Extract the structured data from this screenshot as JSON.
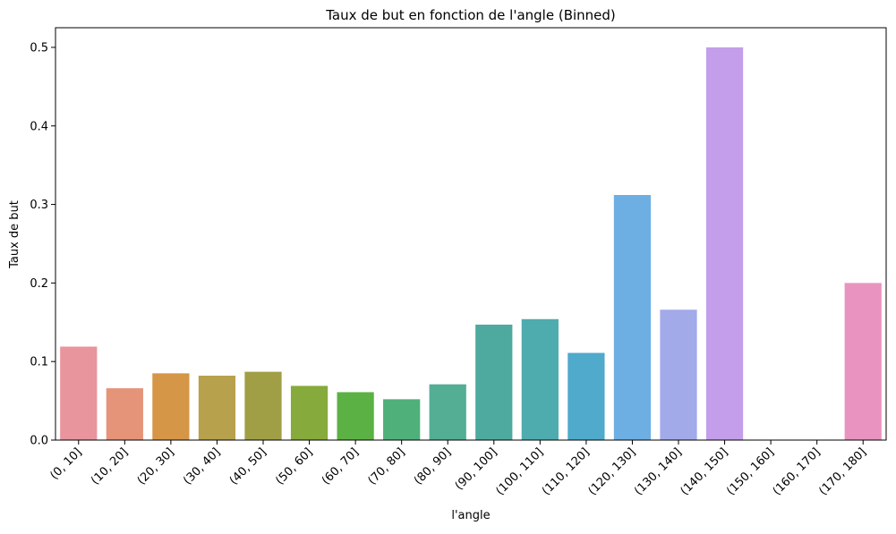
{
  "chart_data": {
    "type": "bar",
    "title": "Taux de but en fonction de l'angle (Binned)",
    "xlabel": "l'angle",
    "ylabel": "Taux de but",
    "categories": [
      "(0, 10]",
      "(10, 20]",
      "(20, 30]",
      "(30, 40]",
      "(40, 50]",
      "(50, 60]",
      "(60, 70]",
      "(70, 80]",
      "(80, 90]",
      "(90, 100]",
      "(100, 110]",
      "(110, 120]",
      "(120, 130]",
      "(130, 140]",
      "(140, 150]",
      "(150, 160]",
      "(160, 170]",
      "(170, 180]"
    ],
    "values": [
      0.119,
      0.066,
      0.085,
      0.082,
      0.087,
      0.069,
      0.061,
      0.052,
      0.071,
      0.147,
      0.154,
      0.111,
      0.312,
      0.166,
      0.5,
      0.0,
      0.0,
      0.2
    ],
    "colors": [
      "#e8959d",
      "#e69479",
      "#d59647",
      "#b8a14d",
      "#a19f45",
      "#86aa3b",
      "#5bb143",
      "#4fb07a",
      "#53ae94",
      "#4eaa9f",
      "#4eabae",
      "#50aacb",
      "#6daee3",
      "#a3aaea",
      "#c49eea",
      "#e29be6",
      "#e494d6",
      "#e994c0"
    ],
    "ylim": [
      0,
      0.525
    ],
    "yticks": [
      "0.0",
      "0.1",
      "0.2",
      "0.3",
      "0.4",
      "0.5"
    ],
    "grid": false,
    "legend": false
  }
}
